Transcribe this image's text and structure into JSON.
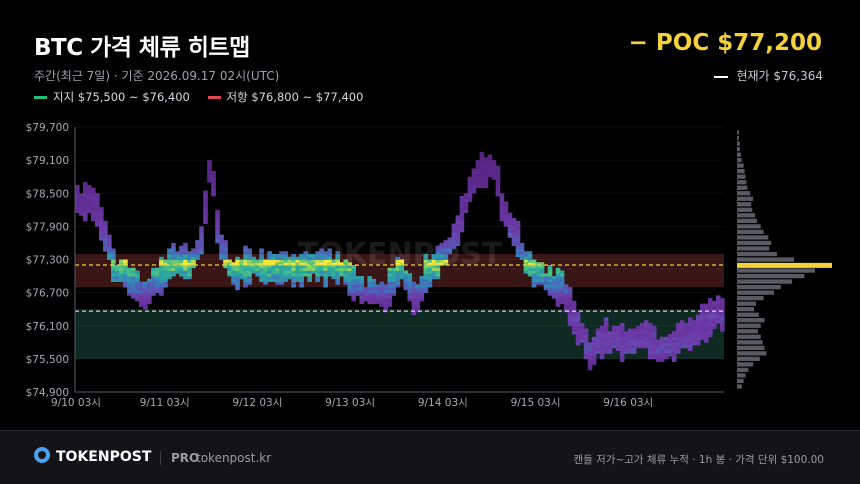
{
  "header": {
    "title": "BTC 가격 체류 히트맵",
    "subtitle": "주간(최근 7일) · 기준 2026.09.17  02시(UTC)",
    "poc_label": "− POC $77,200",
    "current_label": "현재가 $76,364"
  },
  "legend": {
    "support_label": "지지 $75,500 ~ $76,400",
    "resistance_label": "저항 $76,800 ~ $77,400",
    "support_color": "#22c07a",
    "resistance_color": "#e0484f"
  },
  "colors": {
    "poc": "#f5d13a",
    "low_density": "#6a2fa0",
    "mid_density": "#3f8cc0",
    "high_density": "#f5e83a",
    "resistance_zone": "#3a1516",
    "support_zone": "#0e2a22"
  },
  "chart_data": {
    "type": "heatmap",
    "ylim": [
      74900,
      79700
    ],
    "y_ticks": [
      "$79,700",
      "$79,100",
      "$78,500",
      "$77,900",
      "$77,300",
      "$76,700",
      "$76,100",
      "$75,500",
      "$74,900"
    ],
    "y_tick_values": [
      79700,
      79100,
      78500,
      77900,
      77300,
      76700,
      76100,
      75500,
      74900
    ],
    "x_ticks": [
      "9/10 03시",
      "9/11 03시",
      "9/12 03시",
      "9/13 03시",
      "9/14 03시",
      "9/15 03시",
      "9/16 03시"
    ],
    "x_tick_hours": [
      0,
      24,
      48,
      72,
      96,
      120,
      144
    ],
    "x_range_hours": [
      0,
      168
    ],
    "poc": 77200,
    "current_price": 76364,
    "support_zone": [
      75500,
      76400
    ],
    "resistance_zone": [
      76800,
      77400
    ],
    "price_path_anchors": [
      [
        0,
        78400
      ],
      [
        5,
        78300
      ],
      [
        8,
        77700
      ],
      [
        10,
        77100
      ],
      [
        14,
        76900
      ],
      [
        18,
        76700
      ],
      [
        22,
        77000
      ],
      [
        26,
        77300
      ],
      [
        30,
        77200
      ],
      [
        33,
        77700
      ],
      [
        35,
        79100
      ],
      [
        37,
        77700
      ],
      [
        40,
        77100
      ],
      [
        46,
        77200
      ],
      [
        52,
        77100
      ],
      [
        58,
        77100
      ],
      [
        64,
        77200
      ],
      [
        70,
        77100
      ],
      [
        74,
        76700
      ],
      [
        80,
        76600
      ],
      [
        84,
        77200
      ],
      [
        88,
        76600
      ],
      [
        92,
        77200
      ],
      [
        96,
        77400
      ],
      [
        100,
        78100
      ],
      [
        104,
        78900
      ],
      [
        108,
        79000
      ],
      [
        111,
        78200
      ],
      [
        114,
        77700
      ],
      [
        118,
        77100
      ],
      [
        122,
        76900
      ],
      [
        126,
        76800
      ],
      [
        129,
        76300
      ],
      [
        133,
        75600
      ],
      [
        137,
        75900
      ],
      [
        142,
        75800
      ],
      [
        148,
        75900
      ],
      [
        152,
        75600
      ],
      [
        156,
        75900
      ],
      [
        160,
        76000
      ],
      [
        164,
        76200
      ],
      [
        168,
        76400
      ]
    ],
    "volume_profile": [
      {
        "price": 75000,
        "v": 0.05
      },
      {
        "price": 75100,
        "v": 0.07
      },
      {
        "price": 75200,
        "v": 0.09
      },
      {
        "price": 75300,
        "v": 0.12
      },
      {
        "price": 75400,
        "v": 0.17
      },
      {
        "price": 75500,
        "v": 0.24
      },
      {
        "price": 75600,
        "v": 0.31
      },
      {
        "price": 75700,
        "v": 0.29
      },
      {
        "price": 75800,
        "v": 0.27
      },
      {
        "price": 75900,
        "v": 0.25
      },
      {
        "price": 76000,
        "v": 0.22
      },
      {
        "price": 76100,
        "v": 0.25
      },
      {
        "price": 76200,
        "v": 0.29
      },
      {
        "price": 76300,
        "v": 0.23
      },
      {
        "price": 76400,
        "v": 0.18
      },
      {
        "price": 76500,
        "v": 0.2
      },
      {
        "price": 76600,
        "v": 0.28
      },
      {
        "price": 76700,
        "v": 0.39
      },
      {
        "price": 76800,
        "v": 0.46
      },
      {
        "price": 76900,
        "v": 0.58
      },
      {
        "price": 77000,
        "v": 0.71
      },
      {
        "price": 77100,
        "v": 0.82
      },
      {
        "price": 77200,
        "v": 1.0
      },
      {
        "price": 77300,
        "v": 0.6
      },
      {
        "price": 77400,
        "v": 0.42
      },
      {
        "price": 77500,
        "v": 0.34
      },
      {
        "price": 77600,
        "v": 0.36
      },
      {
        "price": 77700,
        "v": 0.33
      },
      {
        "price": 77800,
        "v": 0.28
      },
      {
        "price": 77900,
        "v": 0.25
      },
      {
        "price": 78000,
        "v": 0.21
      },
      {
        "price": 78100,
        "v": 0.19
      },
      {
        "price": 78200,
        "v": 0.16
      },
      {
        "price": 78300,
        "v": 0.15
      },
      {
        "price": 78400,
        "v": 0.17
      },
      {
        "price": 78500,
        "v": 0.14
      },
      {
        "price": 78600,
        "v": 0.11
      },
      {
        "price": 78700,
        "v": 0.1
      },
      {
        "price": 78800,
        "v": 0.09
      },
      {
        "price": 78900,
        "v": 0.08
      },
      {
        "price": 79000,
        "v": 0.07
      },
      {
        "price": 79100,
        "v": 0.05
      },
      {
        "price": 79200,
        "v": 0.04
      },
      {
        "price": 79300,
        "v": 0.03
      },
      {
        "price": 79400,
        "v": 0.03
      },
      {
        "price": 79500,
        "v": 0.02
      },
      {
        "price": 79600,
        "v": 0.02
      }
    ]
  },
  "watermark": "TOKENPOST",
  "footer": {
    "brand": "TOKENPOST",
    "tier": "PRO",
    "site": "tokenpost.kr",
    "note": "캔들 저가~고가 체류 누적 · 1h 봉 · 가격 단위 $100.00"
  }
}
